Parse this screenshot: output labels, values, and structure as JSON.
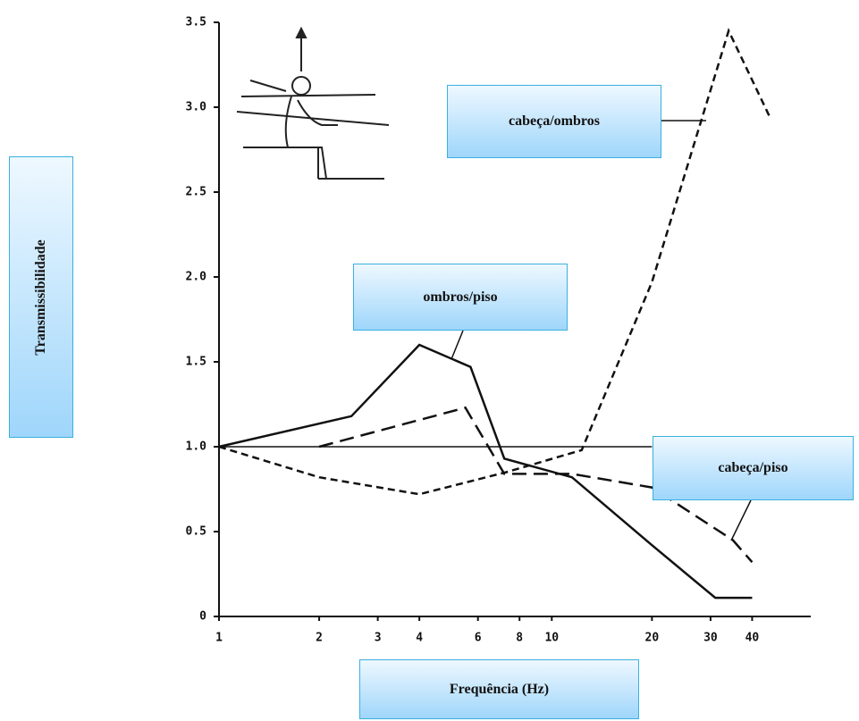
{
  "chart_data": {
    "type": "line",
    "xlabel": "Frequência (Hz)",
    "ylabel": "Transmissibilidade",
    "xscale": "log",
    "xlim": [
      1,
      60
    ],
    "ylim": [
      0,
      3.5
    ],
    "xticks": [
      1,
      2,
      3,
      4,
      6,
      8,
      10,
      20,
      30,
      40
    ],
    "yticks": [
      0,
      0.5,
      {
        "value": 1,
        "label": "1.0"
      },
      1.5,
      {
        "value": 2,
        "label": "2.0"
      },
      2.5,
      {
        "value": 3,
        "label": "3.0"
      },
      3.5
    ],
    "reference_line": 1,
    "series": [
      {
        "name": "ombros/piso",
        "color": "#111111",
        "dash": "solid",
        "x": [
          1,
          2.5,
          4,
          5.7,
          7.2,
          11.5,
          20,
          31,
          40
        ],
        "values": [
          1.0,
          1.18,
          1.6,
          1.47,
          0.93,
          0.82,
          0.42,
          0.11,
          0.11
        ]
      },
      {
        "name": "cabeça/ombros",
        "color": "#111111",
        "dash": "short",
        "x": [
          1,
          2,
          4,
          7.3,
          12.3,
          20,
          34,
          45
        ],
        "values": [
          1.0,
          0.82,
          0.72,
          0.85,
          0.98,
          1.97,
          3.45,
          2.95
        ]
      },
      {
        "name": "cabeça/piso",
        "color": "#111111",
        "dash": "long",
        "x": [
          2,
          5.5,
          7.2,
          11.5,
          20,
          35,
          40
        ],
        "values": [
          1.0,
          1.23,
          0.84,
          0.84,
          0.76,
          0.45,
          0.32
        ]
      }
    ]
  }
}
